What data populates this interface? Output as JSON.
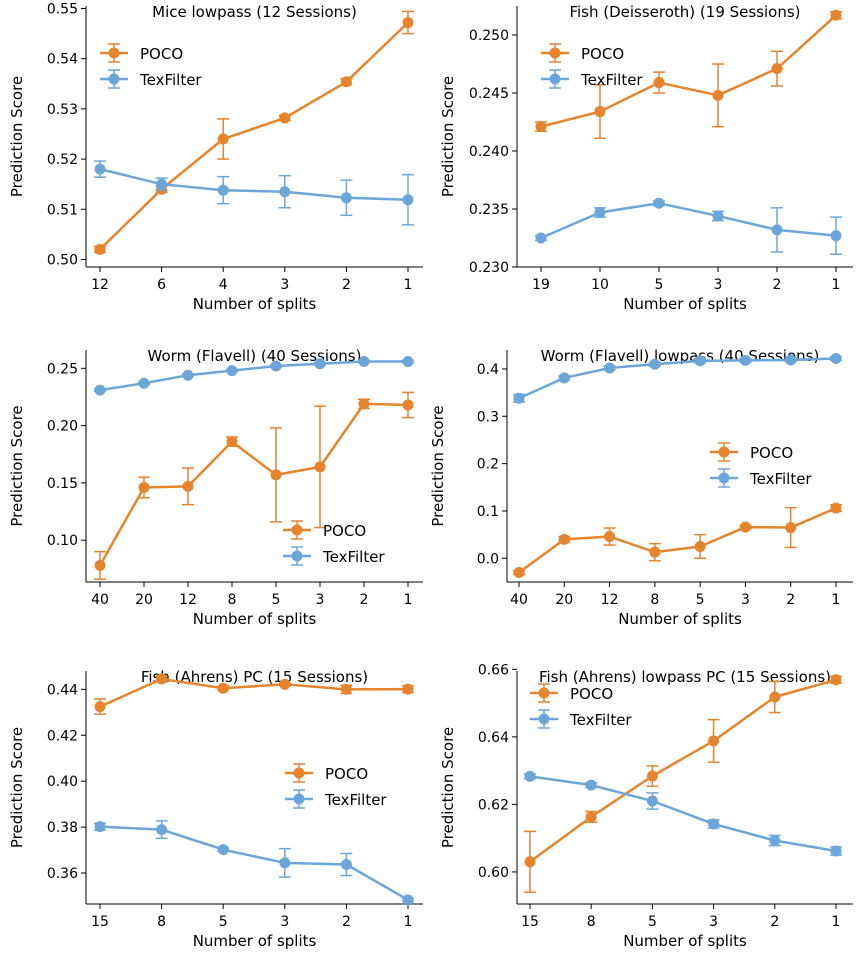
{
  "chart_data": [
    {
      "type": "line",
      "title": "Mice lowpass (12 Sessions)",
      "xlabel": "Number of splits",
      "ylabel": "Prediction Score",
      "categories": [
        "12",
        "6",
        "4",
        "3",
        "2",
        "1"
      ],
      "ylim": [
        0.4985,
        0.5505
      ],
      "yticks": [
        "0.50",
        "0.51",
        "0.52",
        "0.53",
        "0.54",
        "0.55"
      ],
      "legend_position": "upper-left",
      "series": [
        {
          "name": "POCO",
          "color": "#e6832d",
          "values": [
            0.502,
            0.514,
            0.524,
            0.5282,
            0.5354,
            0.5472
          ],
          "errors": [
            0.0006,
            0.0006,
            0.004,
            0.0005,
            0.0006,
            0.0022
          ]
        },
        {
          "name": "TexFilter",
          "color": "#6ca6d8",
          "values": [
            0.518,
            0.515,
            0.5138,
            0.5135,
            0.5123,
            0.5119
          ],
          "errors": [
            0.0016,
            0.0012,
            0.0027,
            0.0032,
            0.0035,
            0.005
          ]
        }
      ]
    },
    {
      "type": "line",
      "title": "Fish (Deisseroth)  (19 Sessions)",
      "xlabel": "Number of splits",
      "ylabel": "Prediction Score",
      "categories": [
        "19",
        "10",
        "5",
        "3",
        "2",
        "1"
      ],
      "ylim": [
        0.23,
        0.2525
      ],
      "yticks": [
        "0.230",
        "0.235",
        "0.240",
        "0.245",
        "0.250"
      ],
      "legend_position": "upper-left",
      "series": [
        {
          "name": "POCO",
          "color": "#e6832d",
          "values": [
            0.2421,
            0.2434,
            0.2459,
            0.2448,
            0.2471,
            0.2517
          ],
          "errors": [
            0.0004,
            0.0023,
            0.0009,
            0.0027,
            0.0015,
            0.0003
          ]
        },
        {
          "name": "TexFilter",
          "color": "#6ca6d8",
          "values": [
            0.2325,
            0.2347,
            0.2355,
            0.2344,
            0.2332,
            0.2327
          ],
          "errors": [
            0.0002,
            0.0004,
            0.0002,
            0.0004,
            0.0019,
            0.0016
          ]
        }
      ]
    },
    {
      "type": "line",
      "title": "Worm (Flavell)  (40 Sessions)",
      "xlabel": "Number of splits",
      "ylabel": "Prediction Score",
      "categories": [
        "40",
        "20",
        "12",
        "8",
        "5",
        "3",
        "2",
        "1"
      ],
      "ylim": [
        0.0635,
        0.266
      ],
      "yticks": [
        "0.10",
        "0.15",
        "0.20",
        "0.25"
      ],
      "legend_position": "lower-right",
      "series": [
        {
          "name": "POCO",
          "color": "#e6832d",
          "values": [
            0.078,
            0.146,
            0.147,
            0.186,
            0.157,
            0.164,
            0.219,
            0.218
          ],
          "errors": [
            0.012,
            0.009,
            0.016,
            0.004,
            0.041,
            0.053,
            0.004,
            0.011
          ]
        },
        {
          "name": "TexFilter",
          "color": "#6ca6d8",
          "values": [
            0.231,
            0.237,
            0.244,
            0.248,
            0.252,
            0.254,
            0.256,
            0.256
          ],
          "errors": [
            0.001,
            0.001,
            0.001,
            0.001,
            0.001,
            0.001,
            0.001,
            0.001
          ]
        }
      ]
    },
    {
      "type": "line",
      "title": "Worm (Flavell) lowpass (40 Sessions)",
      "xlabel": "Number of splits",
      "ylabel": "Prediction Score",
      "categories": [
        "40",
        "20",
        "12",
        "8",
        "5",
        "3",
        "2",
        "1"
      ],
      "ylim": [
        -0.05,
        0.44
      ],
      "yticks": [
        "0.0",
        "0.1",
        "0.2",
        "0.3",
        "0.4"
      ],
      "legend_position": "center-right",
      "series": [
        {
          "name": "POCO",
          "color": "#e6832d",
          "values": [
            -0.03,
            0.04,
            0.046,
            0.013,
            0.025,
            0.066,
            0.065,
            0.106
          ],
          "errors": [
            0.004,
            0.006,
            0.018,
            0.018,
            0.025,
            0.004,
            0.042,
            0.007
          ]
        },
        {
          "name": "TexFilter",
          "color": "#6ca6d8",
          "values": [
            0.338,
            0.381,
            0.402,
            0.41,
            0.417,
            0.418,
            0.419,
            0.422
          ],
          "errors": [
            0.008,
            0.004,
            0.004,
            0.004,
            0.004,
            0.004,
            0.004,
            0.004
          ]
        }
      ]
    },
    {
      "type": "line",
      "title": "Fish (Ahrens) PC (15 Sessions)",
      "xlabel": "Number of splits",
      "ylabel": "Prediction Score",
      "categories": [
        "15",
        "8",
        "5",
        "3",
        "2",
        "1"
      ],
      "ylim": [
        0.3465,
        0.448
      ],
      "yticks": [
        "0.36",
        "0.38",
        "0.40",
        "0.42",
        "0.44"
      ],
      "legend_position": "center-right",
      "series": [
        {
          "name": "POCO",
          "color": "#e6832d",
          "values": [
            0.4325,
            0.4445,
            0.4405,
            0.4422,
            0.44,
            0.4401
          ],
          "errors": [
            0.0033,
            0.0012,
            0.0009,
            0.0006,
            0.0018,
            0.0015
          ]
        },
        {
          "name": "TexFilter",
          "color": "#6ca6d8",
          "values": [
            0.3802,
            0.3789,
            0.3702,
            0.3644,
            0.3637,
            0.3483
          ],
          "errors": [
            0.0015,
            0.0038,
            0.0007,
            0.0062,
            0.0048,
            0.0007
          ]
        }
      ]
    },
    {
      "type": "line",
      "title": "Fish (Ahrens) lowpass PC (15 Sessions)",
      "xlabel": "Number of splits",
      "ylabel": "Prediction Score",
      "categories": [
        "15",
        "8",
        "5",
        "3",
        "2",
        "1"
      ],
      "ylim": [
        0.5905,
        0.6595
      ],
      "yticks": [
        "0.60",
        "0.62",
        "0.64",
        "0.66"
      ],
      "legend_position": "upper-left",
      "series": [
        {
          "name": "POCO",
          "color": "#e6832d",
          "values": [
            0.603,
            0.6163,
            0.6284,
            0.6388,
            0.6518,
            0.6569
          ],
          "errors": [
            0.009,
            0.0016,
            0.003,
            0.0063,
            0.0046,
            0.001
          ]
        },
        {
          "name": "TexFilter",
          "color": "#6ca6d8",
          "values": [
            0.6283,
            0.6257,
            0.621,
            0.6142,
            0.6093,
            0.6062
          ],
          "errors": [
            0.0007,
            0.0007,
            0.0024,
            0.0012,
            0.0015,
            0.0012
          ]
        }
      ]
    }
  ]
}
